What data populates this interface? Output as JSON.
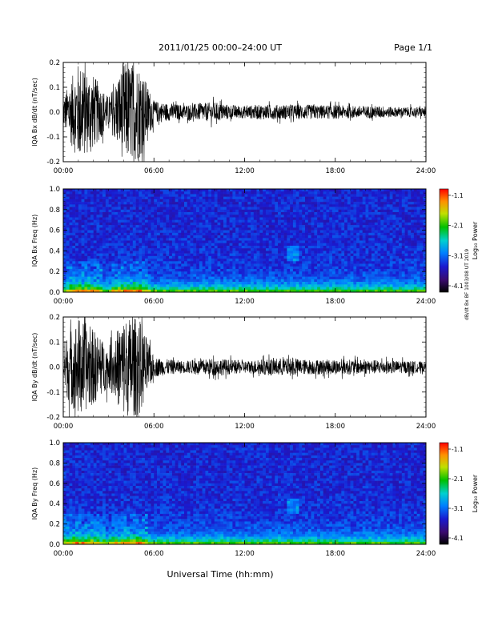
{
  "header": {
    "title": "2011/01/25  00:00–24:00 UT",
    "page": "Page 1/1"
  },
  "xlabel": "Universal Time (hh:mm)",
  "side_note": "dB/dt Bx BF 1003/08 UT 2019",
  "time_ticks": [
    "00:00",
    "06:00",
    "12:00",
    "18:00",
    "24:00"
  ],
  "colorbar": {
    "label": "Log₁₀ Power",
    "ticks": [
      "-1.1",
      "-2.1",
      "-3.1",
      "-4.1"
    ],
    "range": [
      -4.1,
      -1.1
    ]
  },
  "chart_data": [
    {
      "type": "line",
      "ylabel": "IQA Bx dB/dt (nT/sec)",
      "ylim": [
        -0.2,
        0.2
      ],
      "yticks": [
        "0.2",
        "0.1",
        "0.0",
        "-0.1",
        "-0.2"
      ],
      "xlim": [
        "00:00",
        "24:00"
      ],
      "series": [
        {
          "x": [
            "00:00",
            "01:00",
            "02:00",
            "03:00",
            "04:00",
            "05:00",
            "06:00",
            "07:00",
            "08:00",
            "09:00",
            "10:00",
            "11:00",
            "12:00",
            "13:00",
            "14:00",
            "15:00",
            "16:00",
            "17:00",
            "18:00",
            "19:00",
            "20:00",
            "21:00",
            "22:00",
            "23:00",
            "24:00"
          ],
          "envelope": [
            0.06,
            0.2,
            0.15,
            0.06,
            0.2,
            0.2,
            0.045,
            0.035,
            0.03,
            0.035,
            0.04,
            0.03,
            0.025,
            0.03,
            0.03,
            0.03,
            0.03,
            0.028,
            0.028,
            0.025,
            0.025,
            0.025,
            0.02,
            0.02,
            0.02
          ]
        }
      ]
    },
    {
      "type": "heatmap",
      "ylabel": "IQA Bx Freq (Hz)",
      "ylim": [
        0.0,
        1.0
      ],
      "yticks": [
        "1.0",
        "0.8",
        "0.6",
        "0.4",
        "0.2",
        "0.0"
      ],
      "xlim": [
        "00:00",
        "24:00"
      ],
      "zlabel": "Log₁₀ Power",
      "zlim": [
        -4.1,
        -1.1
      ]
    },
    {
      "type": "line",
      "ylabel": "IQA By dB/dt (nT/sec)",
      "ylim": [
        -0.2,
        0.2
      ],
      "yticks": [
        "0.2",
        "0.1",
        "0.0",
        "-0.1",
        "-0.2"
      ],
      "xlim": [
        "00:00",
        "24:00"
      ],
      "series": [
        {
          "x": [
            "00:00",
            "01:00",
            "02:00",
            "03:00",
            "04:00",
            "05:00",
            "06:00",
            "07:00",
            "08:00",
            "09:00",
            "10:00",
            "11:00",
            "12:00",
            "13:00",
            "14:00",
            "15:00",
            "16:00",
            "17:00",
            "18:00",
            "19:00",
            "20:00",
            "21:00",
            "22:00",
            "23:00",
            "24:00"
          ],
          "envelope": [
            0.1,
            0.2,
            0.15,
            0.08,
            0.2,
            0.2,
            0.04,
            0.03,
            0.025,
            0.03,
            0.035,
            0.03,
            0.025,
            0.03,
            0.035,
            0.035,
            0.03,
            0.03,
            0.03,
            0.03,
            0.028,
            0.028,
            0.025,
            0.025,
            0.02
          ]
        }
      ]
    },
    {
      "type": "heatmap",
      "ylabel": "IQA By Freq (Hz)",
      "ylim": [
        0.0,
        1.0
      ],
      "yticks": [
        "1.0",
        "0.8",
        "0.6",
        "0.4",
        "0.2",
        "0.0"
      ],
      "xlim": [
        "00:00",
        "24:00"
      ],
      "zlabel": "Log₁₀ Power",
      "zlim": [
        -4.1,
        -1.1
      ]
    }
  ]
}
